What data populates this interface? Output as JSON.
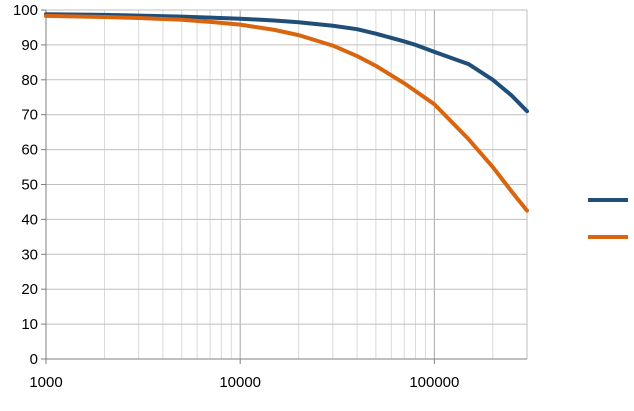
{
  "chart_data": {
    "type": "line",
    "x_scale": "log",
    "xlim": [
      1000,
      300000
    ],
    "ylim": [
      0,
      100
    ],
    "x_ticks": [
      {
        "value": 1000,
        "label": "1000"
      },
      {
        "value": 10000,
        "label": "10000"
      },
      {
        "value": 100000,
        "label": "100000"
      }
    ],
    "y_ticks": [
      {
        "value": 0,
        "label": "0"
      },
      {
        "value": 10,
        "label": "10"
      },
      {
        "value": 20,
        "label": "20"
      },
      {
        "value": 30,
        "label": "30"
      },
      {
        "value": 40,
        "label": "40"
      },
      {
        "value": 50,
        "label": "50"
      },
      {
        "value": 60,
        "label": "60"
      },
      {
        "value": 70,
        "label": "70"
      },
      {
        "value": 80,
        "label": "80"
      },
      {
        "value": 90,
        "label": "90"
      },
      {
        "value": 100,
        "label": "100"
      }
    ],
    "grid": true,
    "minor_grid": true,
    "legend": {
      "placement": "right",
      "labels_shown": false
    },
    "series": [
      {
        "color": "#1F4E79",
        "points": [
          [
            1000,
            98.8
          ],
          [
            2000,
            98.6
          ],
          [
            3000,
            98.4
          ],
          [
            5000,
            98.1
          ],
          [
            7000,
            97.8
          ],
          [
            10000,
            97.5
          ],
          [
            15000,
            97.0
          ],
          [
            20000,
            96.5
          ],
          [
            30000,
            95.5
          ],
          [
            40000,
            94.5
          ],
          [
            50000,
            93.2
          ],
          [
            70000,
            91.0
          ],
          [
            80000,
            90.0
          ],
          [
            100000,
            88.0
          ],
          [
            150000,
            84.5
          ],
          [
            200000,
            80.0
          ],
          [
            250000,
            75.5
          ],
          [
            300000,
            71.0
          ]
        ]
      },
      {
        "color": "#D9650F",
        "points": [
          [
            1000,
            98.3
          ],
          [
            2000,
            98.0
          ],
          [
            3000,
            97.7
          ],
          [
            5000,
            97.2
          ],
          [
            7000,
            96.6
          ],
          [
            10000,
            95.8
          ],
          [
            15000,
            94.3
          ],
          [
            20000,
            92.8
          ],
          [
            30000,
            89.8
          ],
          [
            40000,
            86.8
          ],
          [
            50000,
            84.0
          ],
          [
            70000,
            79.0
          ],
          [
            100000,
            73.0
          ],
          [
            150000,
            63.0
          ],
          [
            200000,
            55.0
          ],
          [
            250000,
            48.0
          ],
          [
            300000,
            42.5
          ]
        ]
      }
    ]
  }
}
